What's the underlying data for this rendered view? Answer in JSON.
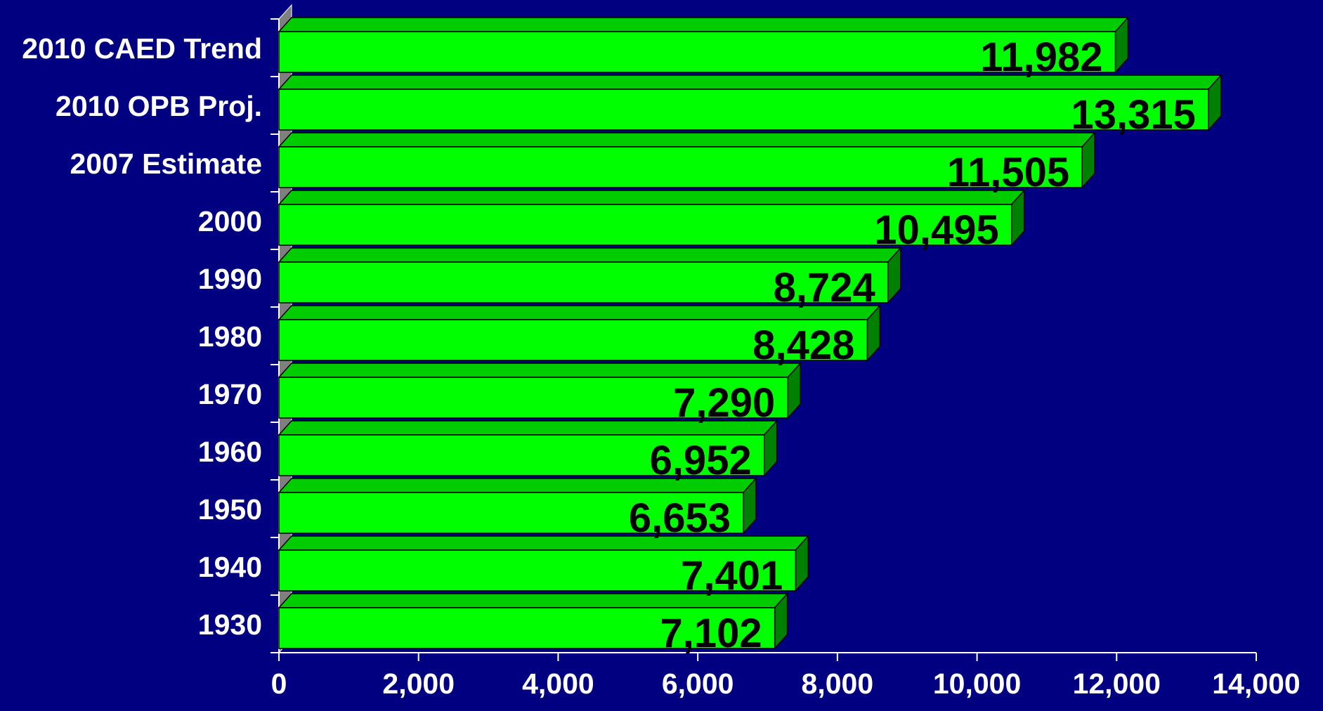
{
  "chart_data": {
    "type": "bar",
    "orientation": "horizontal",
    "style": "3d",
    "categories": [
      "2010 CAED Trend",
      "2010 OPB Proj.",
      "2007 Estimate",
      "2000",
      "1990",
      "1980",
      "1970",
      "1960",
      "1950",
      "1940",
      "1930"
    ],
    "values": [
      11982,
      13315,
      11505,
      10495,
      8724,
      8428,
      7290,
      6952,
      6653,
      7401,
      7102
    ],
    "data_labels": [
      "11,982",
      "13,315",
      "11,505",
      "10,495",
      "8,724",
      "8,428",
      "7,290",
      "6,952",
      "6,653",
      "7,401",
      "7,102"
    ],
    "x_ticks": [
      0,
      2000,
      4000,
      6000,
      8000,
      10000,
      12000,
      14000
    ],
    "x_tick_labels": [
      "0",
      "2,000",
      "4,000",
      "6,000",
      "8,000",
      "10,000",
      "12,000",
      "14,000"
    ],
    "xlim": [
      0,
      14000
    ],
    "title": "",
    "xlabel": "",
    "ylabel": "",
    "grid": false,
    "legend": "none",
    "colors": {
      "background": "#000080",
      "bar_front": "#00ff00",
      "bar_top": "#00cc00",
      "bar_side": "#008000",
      "wall": "#7f7f7f",
      "axis": "#ffffff",
      "text": "#ffffff",
      "data_label": "#000000"
    }
  }
}
